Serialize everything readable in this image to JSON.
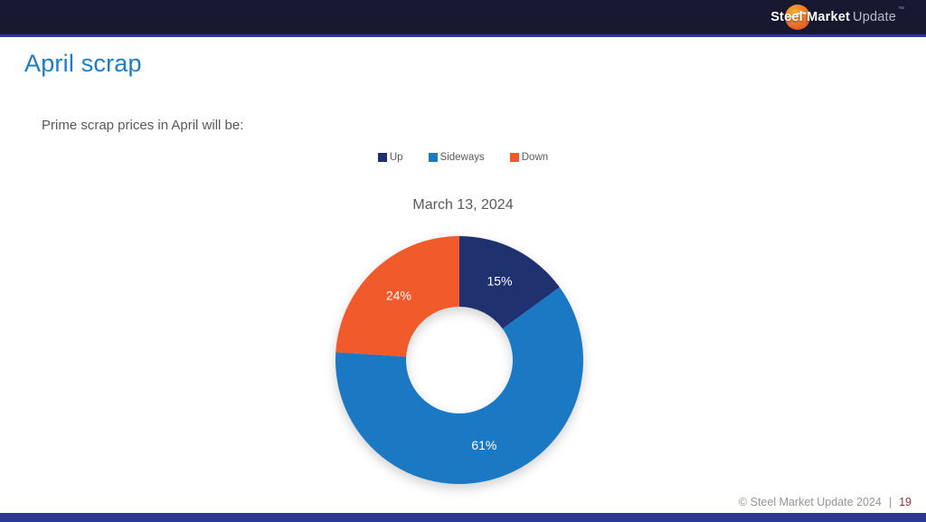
{
  "header": {
    "logo_primary": "Steel Market",
    "logo_secondary": "Update",
    "logo_tm": "™"
  },
  "page": {
    "title": "April scrap",
    "question": "Prime scrap prices in April will be:"
  },
  "chart_data": {
    "type": "pie",
    "donut": true,
    "title": "March 13, 2024",
    "categories": [
      "Up",
      "Sideways",
      "Down"
    ],
    "values": [
      15,
      61,
      24
    ],
    "value_labels": [
      "15%",
      "61%",
      "24%"
    ],
    "colors": [
      "#203170",
      "#1b78c2",
      "#f15a2b"
    ],
    "legend_position": "top",
    "start_angle_deg": 0,
    "direction": "clockwise"
  },
  "footer": {
    "copyright": "© Steel Market Update 2024",
    "separator": "|",
    "page_number": "19"
  },
  "theme": {
    "accent_blue": "#1f7bc5",
    "bar_navy": "#2b3990",
    "topbar_dark": "#181831",
    "text_gray": "#595959",
    "page_number_color": "#8b3333"
  }
}
